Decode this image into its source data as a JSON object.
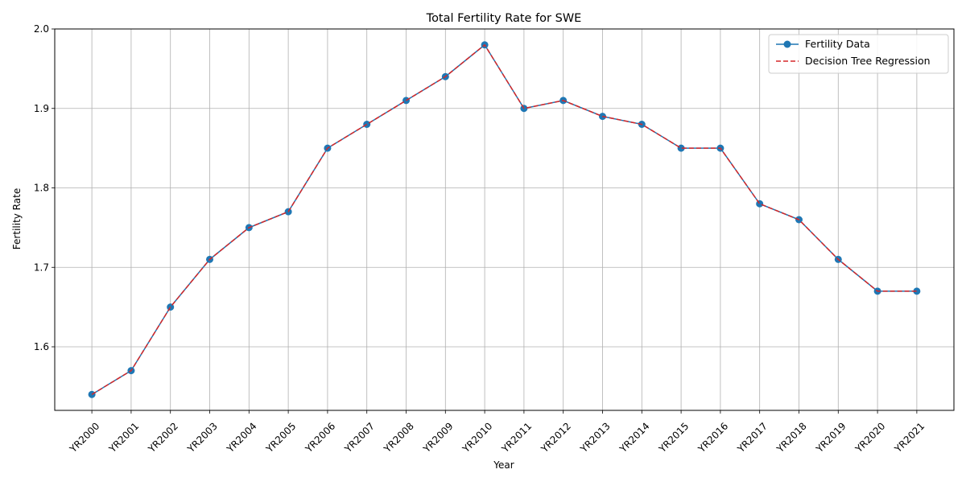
{
  "chart_data": {
    "type": "line",
    "title": "Total Fertility Rate for SWE",
    "xlabel": "Year",
    "ylabel": "Fertility Rate",
    "categories": [
      "YR2000",
      "YR2001",
      "YR2002",
      "YR2003",
      "YR2004",
      "YR2005",
      "YR2006",
      "YR2007",
      "YR2008",
      "YR2009",
      "YR2010",
      "YR2011",
      "YR2012",
      "YR2013",
      "YR2014",
      "YR2015",
      "YR2016",
      "YR2017",
      "YR2018",
      "YR2019",
      "YR2020",
      "YR2021"
    ],
    "ylim": [
      1.52,
      2.0
    ],
    "yticks": [
      1.6,
      1.7,
      1.8,
      1.9,
      2.0
    ],
    "ytick_labels": [
      "1.6",
      "1.7",
      "1.8",
      "1.9",
      "2.0"
    ],
    "grid": true,
    "legend_position": "top-right",
    "series": [
      {
        "name": "Fertility Data",
        "style": "solid-line-with-circle-markers",
        "color": "#1f77b4",
        "values": [
          1.54,
          1.57,
          1.65,
          1.71,
          1.75,
          1.77,
          1.85,
          1.88,
          1.91,
          1.94,
          1.98,
          1.9,
          1.91,
          1.89,
          1.88,
          1.85,
          1.85,
          1.78,
          1.76,
          1.71,
          1.67,
          1.67
        ]
      },
      {
        "name": "Decision Tree Regression",
        "style": "dashed-line",
        "color": "#d62728",
        "values": [
          1.54,
          1.57,
          1.65,
          1.71,
          1.75,
          1.77,
          1.85,
          1.88,
          1.91,
          1.94,
          1.98,
          1.9,
          1.91,
          1.89,
          1.88,
          1.85,
          1.85,
          1.78,
          1.76,
          1.71,
          1.67,
          1.67
        ]
      }
    ]
  }
}
